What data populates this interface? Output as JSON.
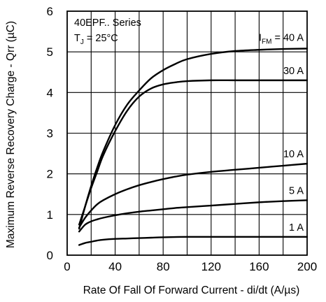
{
  "chart_data": {
    "type": "line",
    "title": "",
    "xlabel": "Rate Of Fall Of Forward Current - di/dt (A/µs)",
    "ylabel": "Maximum Reverse Recovery Charge - Qrr (µC)",
    "xlim": [
      0,
      200
    ],
    "ylim": [
      0,
      6
    ],
    "x_ticks": [
      0,
      40,
      80,
      120,
      160,
      200
    ],
    "y_ticks": [
      0,
      1,
      2,
      3,
      4,
      5,
      6
    ],
    "grid": true,
    "annotations": {
      "series_name": "40EPF.. Series",
      "tj_main": "T",
      "tj_sub": "J",
      "tj_value": " = 25°C",
      "ifm_main": "I",
      "ifm_sub": "FM",
      "ifm_value": " = 40 A"
    },
    "series": [
      {
        "label": "40 A",
        "x": [
          10,
          15,
          20,
          25,
          30,
          40,
          50,
          60,
          70,
          80,
          90,
          100,
          120,
          140,
          160,
          180,
          200
        ],
        "y": [
          0.65,
          1.2,
          1.7,
          2.15,
          2.55,
          3.2,
          3.7,
          4.05,
          4.35,
          4.55,
          4.7,
          4.82,
          4.95,
          5.02,
          5.05,
          5.07,
          5.08
        ]
      },
      {
        "label": "30 A",
        "x": [
          10,
          15,
          20,
          25,
          30,
          40,
          50,
          60,
          70,
          80,
          90,
          100,
          120,
          140,
          160,
          180,
          200
        ],
        "y": [
          0.75,
          1.2,
          1.65,
          2.05,
          2.45,
          3.05,
          3.55,
          3.9,
          4.1,
          4.2,
          4.25,
          4.28,
          4.3,
          4.3,
          4.3,
          4.3,
          4.3
        ]
      },
      {
        "label": "10 A",
        "x": [
          10,
          15,
          20,
          25,
          30,
          40,
          50,
          60,
          70,
          80,
          90,
          100,
          120,
          140,
          160,
          180,
          200
        ],
        "y": [
          0.68,
          0.92,
          1.1,
          1.25,
          1.35,
          1.5,
          1.62,
          1.72,
          1.8,
          1.87,
          1.93,
          1.98,
          2.05,
          2.1,
          2.15,
          2.2,
          2.25
        ]
      },
      {
        "label": "5 A",
        "x": [
          10,
          15,
          20,
          25,
          30,
          40,
          50,
          60,
          70,
          80,
          90,
          100,
          120,
          140,
          160,
          180,
          200
        ],
        "y": [
          0.58,
          0.75,
          0.83,
          0.88,
          0.92,
          0.98,
          1.03,
          1.07,
          1.1,
          1.13,
          1.16,
          1.18,
          1.22,
          1.26,
          1.3,
          1.33,
          1.35
        ]
      },
      {
        "label": "1 A",
        "x": [
          10,
          15,
          20,
          25,
          30,
          40,
          50,
          60,
          70,
          80,
          100,
          120,
          140,
          160,
          180,
          200
        ],
        "y": [
          0.25,
          0.3,
          0.33,
          0.36,
          0.38,
          0.4,
          0.41,
          0.42,
          0.43,
          0.44,
          0.45,
          0.45,
          0.45,
          0.45,
          0.45,
          0.45
        ]
      }
    ]
  }
}
